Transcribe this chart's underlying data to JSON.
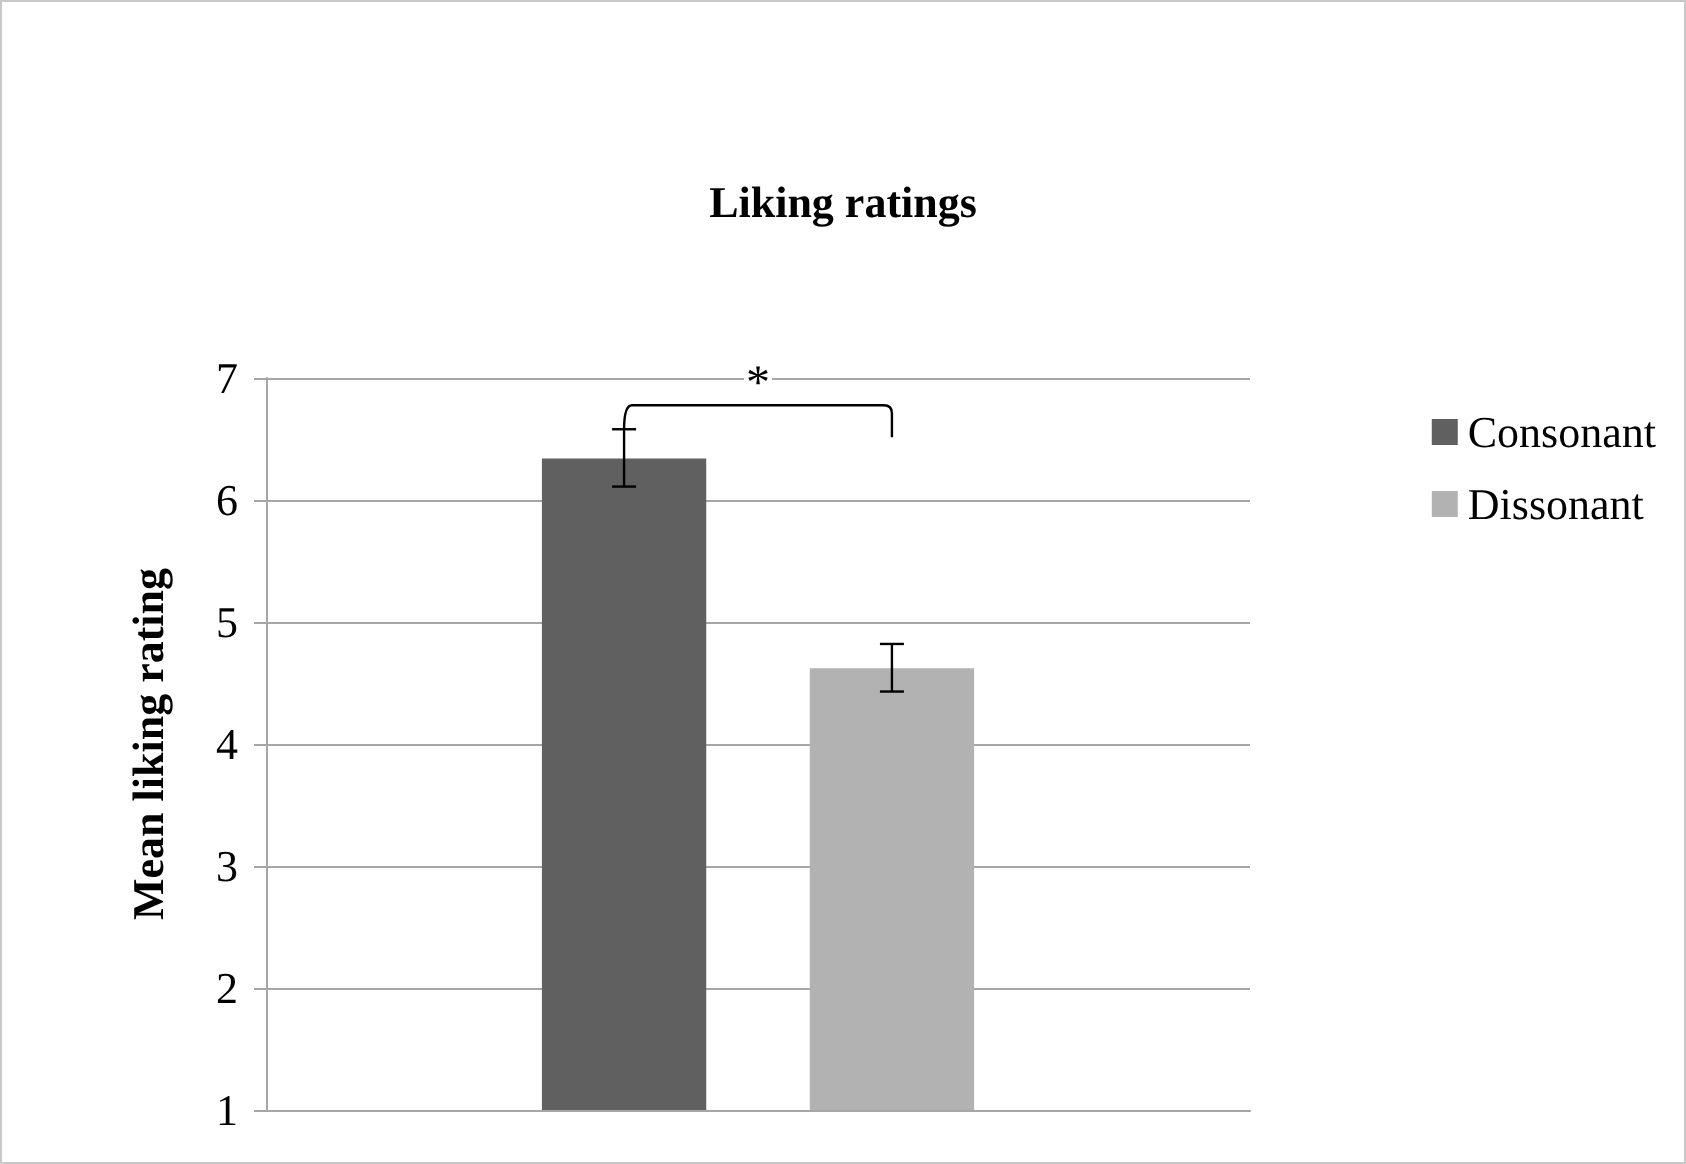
{
  "chart_data": {
    "type": "bar",
    "title": "Liking ratings",
    "ylabel": "Mean liking rating",
    "categories": [
      null
    ],
    "series": [
      {
        "name": "Consonant",
        "color": "#606060",
        "values": [
          6.34
        ],
        "errors": [
          [
            6.11,
            6.58
          ]
        ]
      },
      {
        "name": "Dissonant",
        "color": "#b2b2b2",
        "values": [
          4.62
        ],
        "errors": [
          [
            4.43,
            4.82
          ]
        ]
      }
    ],
    "ylim": [
      1,
      7
    ],
    "yticks": [
      1,
      2,
      3,
      4,
      5,
      6,
      7
    ],
    "grid": "y",
    "legend": "right",
    "annotations": [
      "*"
    ]
  }
}
